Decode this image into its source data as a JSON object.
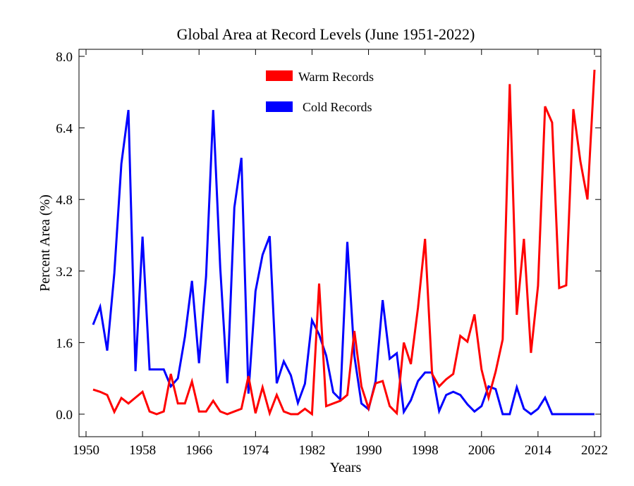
{
  "chart_data": {
    "type": "line",
    "title": "Global Area at Record Levels (June 1951-2022)",
    "xlabel": "Years",
    "ylabel": "Percent Area (%)",
    "xlim": [
      1950,
      2022
    ],
    "ylim": [
      -0.5,
      8.15
    ],
    "xticks": [
      1950,
      1958,
      1966,
      1974,
      1982,
      1990,
      1998,
      2006,
      2014,
      2022
    ],
    "xtick_labels": [
      "1950",
      "1958",
      "1966",
      "1974",
      "1982",
      "1990",
      "1998",
      "2006",
      "2014",
      "2022"
    ],
    "yticks": [
      0.0,
      1.6,
      3.2,
      4.8,
      6.4,
      8.0
    ],
    "ytick_labels": [
      "0.0",
      "1.6",
      "3.2",
      "4.8",
      "6.4",
      "8.0"
    ],
    "grid": false,
    "legend_position": "top-center",
    "x_start": 1951,
    "series": [
      {
        "name": "Warm Records",
        "color": "#ff0000",
        "values": [
          0.55,
          0.5,
          0.43,
          0.05,
          0.36,
          0.24,
          0.37,
          0.5,
          0.06,
          0,
          0.06,
          0.9,
          0.24,
          0.24,
          0.73,
          0.06,
          0.06,
          0.3,
          0.06,
          0,
          0.06,
          0.12,
          0.85,
          0.02,
          0.6,
          0.02,
          0.43,
          0.06,
          0,
          0,
          0.12,
          0,
          2.92,
          0.18,
          0.24,
          0.3,
          0.43,
          1.86,
          0.62,
          0.13,
          0.69,
          0.74,
          0.18,
          0.02,
          1.6,
          1.12,
          2.38,
          3.92,
          0.9,
          0.62,
          0.78,
          0.9,
          1.75,
          1.62,
          2.23,
          1.0,
          0.37,
          0.95,
          1.67,
          7.38,
          2.22,
          3.92,
          1.37,
          2.87,
          6.88,
          6.52,
          2.82,
          2.88,
          6.82,
          5.65,
          4.8,
          7.7
        ]
      },
      {
        "name": "Cold Records",
        "color": "#0000ff",
        "values": [
          2.0,
          2.4,
          1.42,
          3.15,
          5.6,
          6.8,
          0.96,
          3.97,
          1.0,
          1.0,
          1.0,
          0.62,
          0.8,
          1.73,
          2.98,
          1.14,
          3.08,
          6.8,
          3.27,
          0.69,
          4.62,
          5.73,
          0.46,
          2.75,
          3.56,
          3.98,
          0.69,
          1.18,
          0.87,
          0.25,
          0.68,
          2.1,
          1.78,
          1.31,
          0.49,
          0.33,
          3.85,
          1.3,
          0.24,
          0.11,
          0.74,
          2.55,
          1.24,
          1.36,
          0.05,
          0.31,
          0.74,
          0.93,
          0.93,
          0.07,
          0.43,
          0.5,
          0.43,
          0.22,
          0.06,
          0.18,
          0.62,
          0.56,
          0,
          0,
          0.6,
          0.12,
          0,
          0.12,
          0.37,
          0,
          0,
          0,
          0,
          0,
          0,
          0
        ]
      }
    ]
  }
}
